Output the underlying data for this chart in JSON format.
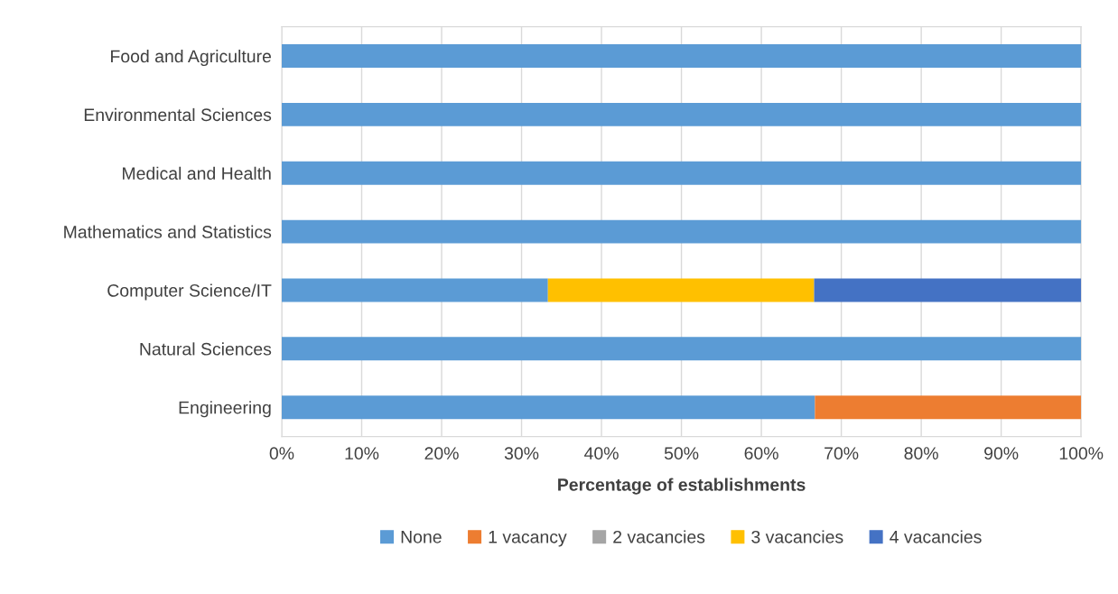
{
  "chart_data": {
    "type": "bar",
    "orientation": "horizontal",
    "stacked": true,
    "xlabel": "Percentage of establishments",
    "categories": [
      "Food and Agriculture",
      "Environmental Sciences",
      "Medical and Health",
      "Mathematics and Statistics",
      "Computer Science/IT",
      "Natural Sciences",
      "Engineering"
    ],
    "series": [
      {
        "name": "None",
        "color": "#5b9bd5",
        "values": [
          100,
          100,
          100,
          100,
          33.3,
          100,
          66.7
        ]
      },
      {
        "name": "1 vacancy",
        "color": "#ed7d31",
        "values": [
          0,
          0,
          0,
          0,
          0,
          0,
          33.3
        ]
      },
      {
        "name": "2 vacancies",
        "color": "#a5a5a5",
        "values": [
          0,
          0,
          0,
          0,
          0,
          0,
          0
        ]
      },
      {
        "name": "3 vacancies",
        "color": "#ffc000",
        "values": [
          0,
          0,
          0,
          0,
          33.3,
          0,
          0
        ]
      },
      {
        "name": "4 vacancies",
        "color": "#4472c4",
        "values": [
          0,
          0,
          0,
          0,
          33.4,
          0,
          0
        ]
      }
    ],
    "xlim": [
      0,
      100
    ],
    "xticks": [
      {
        "value": 0,
        "label": "0%"
      },
      {
        "value": 10,
        "label": "10%"
      },
      {
        "value": 20,
        "label": "20%"
      },
      {
        "value": 30,
        "label": "30%"
      },
      {
        "value": 40,
        "label": "40%"
      },
      {
        "value": 50,
        "label": "50%"
      },
      {
        "value": 60,
        "label": "60%"
      },
      {
        "value": 70,
        "label": "70%"
      },
      {
        "value": 80,
        "label": "80%"
      },
      {
        "value": 90,
        "label": "90%"
      },
      {
        "value": 100,
        "label": "100%"
      }
    ],
    "grid": "x",
    "legend": "bottom"
  }
}
